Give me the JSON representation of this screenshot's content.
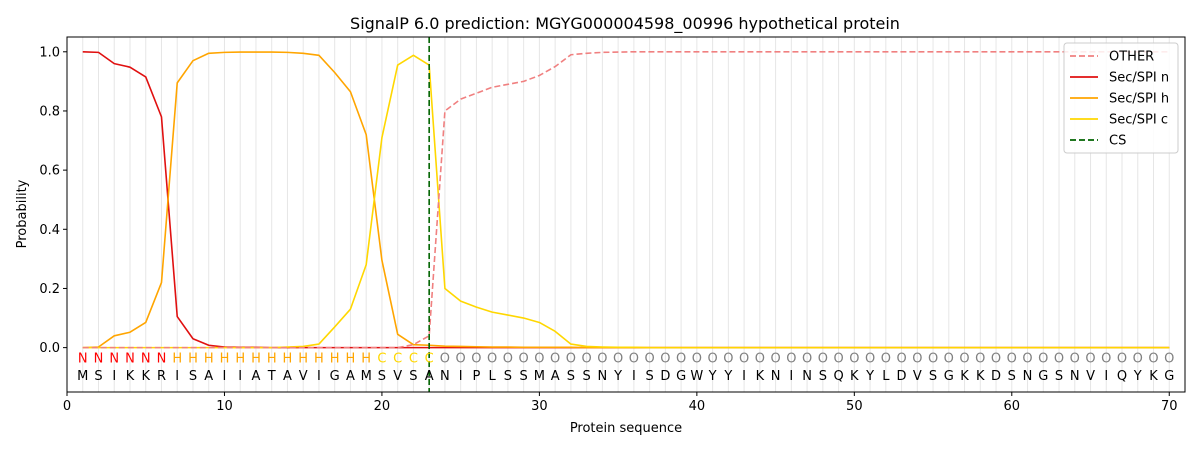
{
  "chart_data": {
    "type": "line",
    "title": "SignalP 6.0 prediction: MGYG000004598_00996 hypothetical protein",
    "xlabel": "Protein sequence",
    "ylabel": "Probability",
    "xlim": [
      0,
      71
    ],
    "ylim": [
      -0.15,
      1.05
    ],
    "xticks": [
      0,
      10,
      20,
      30,
      40,
      50,
      60,
      70
    ],
    "yticks": [
      0.0,
      0.2,
      0.4,
      0.6,
      0.8,
      1.0
    ],
    "grid": "vertical lines at each residue",
    "legend_position": "top-right",
    "sequence": [
      "M",
      "S",
      "I",
      "K",
      "K",
      "R",
      "I",
      "S",
      "A",
      "I",
      "I",
      "A",
      "T",
      "A",
      "V",
      "I",
      "G",
      "A",
      "M",
      "S",
      "V",
      "S",
      "A",
      "N",
      "I",
      "P",
      "L",
      "S",
      "S",
      "M",
      "A",
      "S",
      "S",
      "N",
      "Y",
      "I",
      "S",
      "D",
      "G",
      "W",
      "Y",
      "Y",
      "I",
      "K",
      "N",
      "I",
      "N",
      "S",
      "Q",
      "K",
      "Y",
      "L",
      "D",
      "V",
      "S",
      "G",
      "K",
      "K",
      "D",
      "S",
      "N",
      "G",
      "S",
      "N",
      "V",
      "I",
      "Q",
      "Y",
      "K",
      "G"
    ],
    "labels": [
      "N",
      "N",
      "N",
      "N",
      "N",
      "N",
      "H",
      "H",
      "H",
      "H",
      "H",
      "H",
      "H",
      "H",
      "H",
      "H",
      "H",
      "H",
      "H",
      "C",
      "C",
      "C",
      "C",
      "O",
      "O",
      "O",
      "O",
      "O",
      "O",
      "O",
      "O",
      "O",
      "O",
      "O",
      "O",
      "O",
      "O",
      "O",
      "O",
      "O",
      "O",
      "O",
      "O",
      "O",
      "O",
      "O",
      "O",
      "O",
      "O",
      "O",
      "O",
      "O",
      "O",
      "O",
      "O",
      "O",
      "O",
      "O",
      "O",
      "O",
      "O",
      "O",
      "O",
      "O",
      "O",
      "O",
      "O",
      "O",
      "O",
      "O"
    ],
    "label_colors": {
      "N": "#ff0000",
      "H": "#ffa500",
      "C": "#ffd700",
      "O": "#808080"
    },
    "cleavage_site": 23,
    "series": [
      {
        "name": "OTHER",
        "color": "#f08080",
        "style": "dashed",
        "values": [
          0.0,
          0.0,
          0.0,
          0.0,
          0.0,
          0.0,
          0.0,
          0.0,
          0.0,
          0.0,
          0.0,
          0.0,
          0.0,
          0.0,
          0.0,
          0.0,
          0.0,
          0.0,
          0.0,
          0.0,
          0.0,
          0.01,
          0.04,
          0.8,
          0.84,
          0.86,
          0.88,
          0.89,
          0.9,
          0.92,
          0.95,
          0.99,
          0.995,
          0.998,
          0.999,
          1.0,
          1.0,
          1.0,
          1.0,
          1.0,
          1.0,
          1.0,
          1.0,
          1.0,
          1.0,
          1.0,
          1.0,
          1.0,
          1.0,
          1.0,
          1.0,
          1.0,
          1.0,
          1.0,
          1.0,
          1.0,
          1.0,
          1.0,
          1.0,
          1.0,
          1.0,
          1.0,
          1.0,
          1.0,
          1.0,
          1.0,
          1.0,
          1.0,
          1.0,
          1.0
        ]
      },
      {
        "name": "Sec/SPI n",
        "color": "#e01010",
        "style": "solid",
        "values": [
          1.0,
          0.998,
          0.96,
          0.948,
          0.915,
          0.78,
          0.105,
          0.03,
          0.008,
          0.002,
          0.001,
          0.001,
          0.0,
          0.0,
          0.0,
          0.0,
          0.0,
          0.0,
          0.0,
          0.0,
          0.0,
          0.0,
          0.0,
          0.0,
          0.0,
          0.0,
          0.0,
          0.0,
          0.0,
          0.0,
          0.0,
          0.0,
          0.0,
          0.0,
          0.0,
          0.0,
          0.0,
          0.0,
          0.0,
          0.0,
          0.0,
          0.0,
          0.0,
          0.0,
          0.0,
          0.0,
          0.0,
          0.0,
          0.0,
          0.0,
          0.0,
          0.0,
          0.0,
          0.0,
          0.0,
          0.0,
          0.0,
          0.0,
          0.0,
          0.0,
          0.0,
          0.0,
          0.0,
          0.0,
          0.0,
          0.0,
          0.0,
          0.0,
          0.0,
          0.0
        ]
      },
      {
        "name": "Sec/SPI h",
        "color": "#ffa500",
        "style": "solid",
        "values": [
          0.0,
          0.002,
          0.04,
          0.052,
          0.085,
          0.22,
          0.895,
          0.97,
          0.995,
          0.998,
          0.999,
          0.999,
          0.999,
          0.998,
          0.995,
          0.988,
          0.93,
          0.865,
          0.72,
          0.295,
          0.045,
          0.01,
          0.008,
          0.005,
          0.004,
          0.003,
          0.002,
          0.002,
          0.001,
          0.001,
          0.001,
          0.001,
          0.0,
          0.0,
          0.0,
          0.0,
          0.0,
          0.0,
          0.0,
          0.0,
          0.0,
          0.0,
          0.0,
          0.0,
          0.0,
          0.0,
          0.0,
          0.0,
          0.0,
          0.0,
          0.0,
          0.0,
          0.0,
          0.0,
          0.0,
          0.0,
          0.0,
          0.0,
          0.0,
          0.0,
          0.0,
          0.0,
          0.0,
          0.0,
          0.0,
          0.0,
          0.0,
          0.0,
          0.0,
          0.0
        ]
      },
      {
        "name": "Sec/SPI c",
        "color": "#ffd700",
        "style": "solid",
        "values": [
          0.0,
          0.0,
          0.0,
          0.0,
          0.0,
          0.0,
          0.0,
          0.0,
          0.0,
          0.0,
          0.0,
          0.0,
          0.0,
          0.002,
          0.004,
          0.012,
          0.07,
          0.13,
          0.28,
          0.71,
          0.955,
          0.988,
          0.955,
          0.2,
          0.157,
          0.137,
          0.12,
          0.11,
          0.1,
          0.085,
          0.055,
          0.012,
          0.004,
          0.002,
          0.001,
          0.001,
          0.0,
          0.0,
          0.0,
          0.0,
          0.0,
          0.0,
          0.0,
          0.0,
          0.0,
          0.0,
          0.0,
          0.0,
          0.0,
          0.0,
          0.0,
          0.0,
          0.0,
          0.0,
          0.0,
          0.0,
          0.0,
          0.0,
          0.0,
          0.0,
          0.0,
          0.0,
          0.0,
          0.0,
          0.0,
          0.0,
          0.0,
          0.0,
          0.0,
          0.0
        ]
      },
      {
        "name": "CS",
        "color": "#006400",
        "style": "dashed"
      }
    ]
  }
}
